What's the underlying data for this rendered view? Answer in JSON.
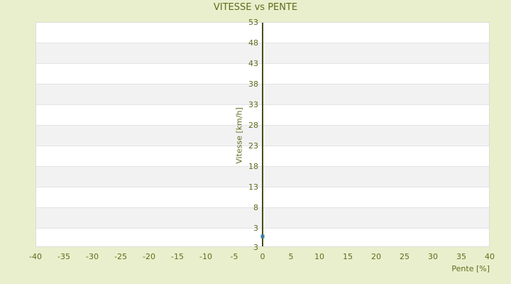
{
  "title": "VITESSE vs PENTE",
  "colors": {
    "background": "#e9efcc",
    "text": "#5e6c1e",
    "axis_line": "#44501a",
    "band_light": "#ffffff",
    "band_dark": "#f2f2f2",
    "gridline": "#e3e3e3",
    "marker": "#3b7da1"
  },
  "chart_data": {
    "type": "scatter",
    "title": "VITESSE vs PENTE",
    "xlabel": "Pente [%]",
    "ylabel": "Vitesse [km/h]",
    "xlim": [
      -40,
      40
    ],
    "ylim": [
      -1.66,
      53
    ],
    "x_ticks": [
      -40,
      -35,
      -30,
      -25,
      -20,
      -15,
      -10,
      -5,
      0,
      5,
      10,
      15,
      20,
      25,
      30,
      35,
      40
    ],
    "y_ticks": [
      53,
      48,
      43,
      38,
      33,
      28,
      23,
      18,
      13,
      8,
      3
    ],
    "y_axis_extra_bottom_label": "3",
    "y_axis_position": "x = 0 (center of plot)",
    "grid": "horizontal gridlines every 5 units with alternating white/gray bands, no vertical gridlines",
    "legend_position": "none",
    "series": [
      {
        "name": "Vitesse",
        "marker": "square",
        "color": "#3b7da1",
        "points": [
          {
            "x": 0,
            "y": 1
          }
        ]
      }
    ]
  }
}
